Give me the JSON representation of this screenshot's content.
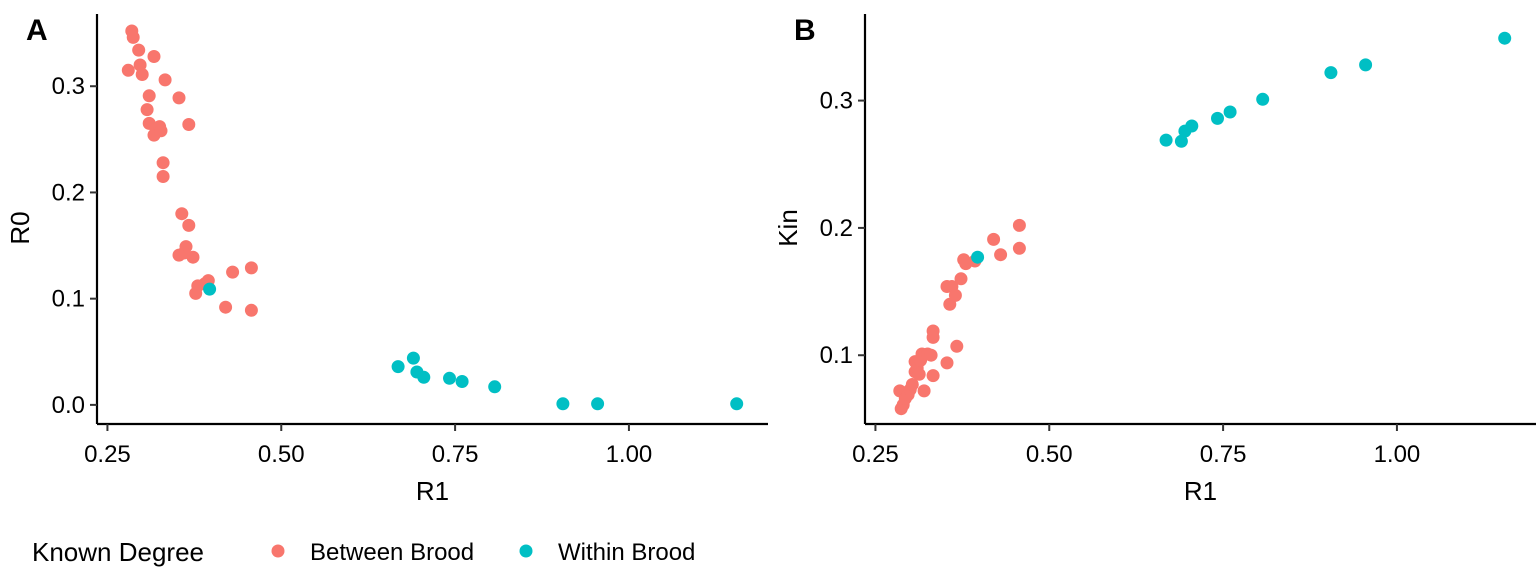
{
  "chart_data": [
    {
      "type": "scatter",
      "panel_label": "A",
      "xlabel": "R1",
      "ylabel": "R0",
      "xlim": [
        0.235,
        1.2
      ],
      "ylim": [
        -0.018,
        0.368
      ],
      "xticks": [
        0.25,
        0.5,
        0.75,
        1.0
      ],
      "xtick_labels": [
        "0.25",
        "0.50",
        "0.75",
        "1.00"
      ],
      "yticks": [
        0.0,
        0.1,
        0.2,
        0.3
      ],
      "ytick_labels": [
        "0.0",
        "0.1",
        "0.2",
        "0.3"
      ],
      "grid": false,
      "series": [
        {
          "name": "Between Brood",
          "color": "#F8766D",
          "points": [
            [
              0.285,
              0.352
            ],
            [
              0.287,
              0.346
            ],
            [
              0.28,
              0.315
            ],
            [
              0.295,
              0.334
            ],
            [
              0.297,
              0.32
            ],
            [
              0.3,
              0.311
            ],
            [
              0.317,
              0.328
            ],
            [
              0.31,
              0.291
            ],
            [
              0.307,
              0.278
            ],
            [
              0.333,
              0.306
            ],
            [
              0.31,
              0.265
            ],
            [
              0.317,
              0.254
            ],
            [
              0.32,
              0.26
            ],
            [
              0.325,
              0.262
            ],
            [
              0.327,
              0.258
            ],
            [
              0.33,
              0.228
            ],
            [
              0.33,
              0.215
            ],
            [
              0.353,
              0.289
            ],
            [
              0.367,
              0.264
            ],
            [
              0.357,
              0.18
            ],
            [
              0.367,
              0.169
            ],
            [
              0.363,
              0.149
            ],
            [
              0.36,
              0.143
            ],
            [
              0.353,
              0.141
            ],
            [
              0.373,
              0.139
            ],
            [
              0.39,
              0.114
            ],
            [
              0.38,
              0.112
            ],
            [
              0.377,
              0.105
            ],
            [
              0.395,
              0.117
            ],
            [
              0.43,
              0.125
            ],
            [
              0.457,
              0.129
            ],
            [
              0.42,
              0.092
            ],
            [
              0.457,
              0.089
            ]
          ]
        },
        {
          "name": "Within Brood",
          "color": "#00BFC4",
          "points": [
            [
              0.397,
              0.109
            ],
            [
              0.668,
              0.036
            ],
            [
              0.69,
              0.044
            ],
            [
              0.695,
              0.031
            ],
            [
              0.705,
              0.026
            ],
            [
              0.742,
              0.025
            ],
            [
              0.76,
              0.022
            ],
            [
              0.807,
              0.017
            ],
            [
              0.905,
              0.001
            ],
            [
              0.955,
              0.001
            ],
            [
              1.155,
              0.001
            ]
          ]
        }
      ]
    },
    {
      "type": "scatter",
      "panel_label": "B",
      "xlabel": "R1",
      "ylabel": "Kin",
      "xlim": [
        0.235,
        1.2
      ],
      "ylim": [
        0.046,
        0.368
      ],
      "xticks": [
        0.25,
        0.5,
        0.75,
        1.0
      ],
      "xtick_labels": [
        "0.25",
        "0.50",
        "0.75",
        "1.00"
      ],
      "yticks": [
        0.1,
        0.2,
        0.3
      ],
      "ytick_labels": [
        "0.1",
        "0.2",
        "0.3"
      ],
      "grid": false,
      "series": [
        {
          "name": "Between Brood",
          "color": "#F8766D",
          "points": [
            [
              0.285,
              0.072
            ],
            [
              0.287,
              0.058
            ],
            [
              0.29,
              0.061
            ],
            [
              0.293,
              0.066
            ],
            [
              0.297,
              0.069
            ],
            [
              0.3,
              0.073
            ],
            [
              0.303,
              0.077
            ],
            [
              0.307,
              0.087
            ],
            [
              0.307,
              0.095
            ],
            [
              0.31,
              0.09
            ],
            [
              0.313,
              0.085
            ],
            [
              0.315,
              0.096
            ],
            [
              0.317,
              0.101
            ],
            [
              0.32,
              0.072
            ],
            [
              0.325,
              0.101
            ],
            [
              0.33,
              0.1
            ],
            [
              0.333,
              0.119
            ],
            [
              0.333,
              0.114
            ],
            [
              0.333,
              0.084
            ],
            [
              0.353,
              0.094
            ],
            [
              0.353,
              0.154
            ],
            [
              0.357,
              0.14
            ],
            [
              0.36,
              0.154
            ],
            [
              0.365,
              0.147
            ],
            [
              0.367,
              0.107
            ],
            [
              0.373,
              0.16
            ],
            [
              0.377,
              0.175
            ],
            [
              0.38,
              0.172
            ],
            [
              0.393,
              0.174
            ],
            [
              0.42,
              0.191
            ],
            [
              0.43,
              0.179
            ],
            [
              0.457,
              0.202
            ],
            [
              0.457,
              0.184
            ]
          ]
        },
        {
          "name": "Within Brood",
          "color": "#00BFC4",
          "points": [
            [
              0.397,
              0.177
            ],
            [
              0.668,
              0.269
            ],
            [
              0.69,
              0.268
            ],
            [
              0.695,
              0.276
            ],
            [
              0.705,
              0.28
            ],
            [
              0.742,
              0.286
            ],
            [
              0.76,
              0.291
            ],
            [
              0.807,
              0.301
            ],
            [
              0.905,
              0.322
            ],
            [
              0.955,
              0.328
            ],
            [
              1.155,
              0.349
            ]
          ]
        }
      ]
    }
  ],
  "legend": {
    "title": "Known Degree",
    "items": [
      {
        "label": "Between Brood",
        "color": "#F8766D"
      },
      {
        "label": "Within Brood",
        "color": "#00BFC4"
      }
    ]
  }
}
